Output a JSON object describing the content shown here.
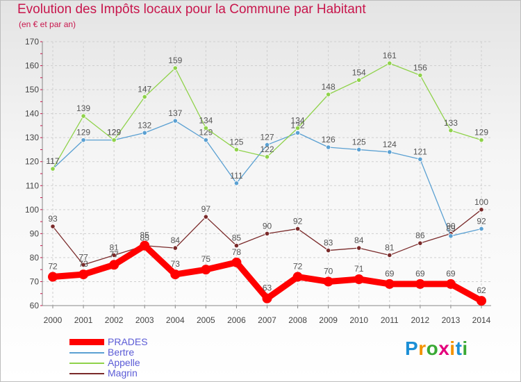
{
  "chart_data": {
    "type": "line",
    "title": "Evolution des Impôts locaux pour la Commune par Habitant",
    "subtitle": "(en € et par an)",
    "xlabel": "",
    "ylabel": "",
    "ylim": [
      60,
      170
    ],
    "yticks": [
      60,
      70,
      80,
      90,
      100,
      110,
      120,
      130,
      140,
      150,
      160,
      170
    ],
    "x": [
      "2000",
      "2001",
      "2002",
      "2003",
      "2004",
      "2005",
      "2006",
      "2007",
      "2008",
      "2009",
      "2010",
      "2011",
      "2012",
      "2013",
      "2014"
    ],
    "series": [
      {
        "name": "PRADES",
        "color": "#ff0000",
        "values": [
          72,
          73,
          77,
          85,
          73,
          75,
          78,
          63,
          72,
          70,
          71,
          69,
          69,
          69,
          62
        ]
      },
      {
        "name": "Bertre",
        "color": "#5aa0d2",
        "values": [
          117,
          129,
          129,
          132,
          137,
          129,
          111,
          127,
          132,
          126,
          125,
          124,
          121,
          89,
          92
        ]
      },
      {
        "name": "Appelle",
        "color": "#8fd24a",
        "values": [
          117,
          139,
          129,
          147,
          159,
          134,
          125,
          122,
          134,
          148,
          154,
          161,
          156,
          133,
          129
        ]
      },
      {
        "name": "Magrin",
        "color": "#7a2a2a",
        "values": [
          93,
          77,
          81,
          85,
          84,
          97,
          85,
          90,
          92,
          83,
          84,
          81,
          86,
          90,
          100
        ]
      }
    ],
    "legend_position": "bottom-left",
    "grid": true
  },
  "logo": {
    "letters": [
      "P",
      "r",
      "o",
      "x",
      "i",
      "t",
      "i"
    ],
    "colors": [
      "#1b8fd6",
      "#f39200",
      "#3aa935",
      "#e4007c",
      "#f39200",
      "#1b8fd6",
      "#3aa935"
    ]
  }
}
